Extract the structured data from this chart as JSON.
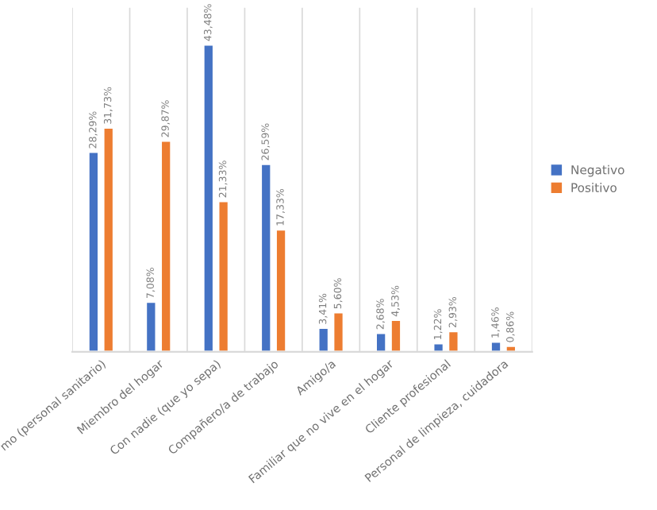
{
  "chart_data": {
    "type": "bar",
    "categories": [
      "mo (personal sanitario)",
      "Miembro del hogar",
      "Con nadie (que yo sepa)",
      "Compañero/a de trabajo",
      "Amigo/a",
      "Familiar que no vive en el hogar",
      "Cliente profesional",
      "Personal de limpieza, cuidadora"
    ],
    "series": [
      {
        "name": "Negativo",
        "color": "#4472c4",
        "values": [
          28.29,
          7.08,
          43.48,
          26.59,
          3.41,
          2.68,
          1.22,
          1.46
        ],
        "value_labels": [
          "28,29%",
          "7,08%",
          "43,48%",
          "26,59%",
          "3,41%",
          "2,68%",
          "1,22%",
          "1,46%"
        ]
      },
      {
        "name": "Positivo",
        "color": "#ed7d31",
        "values": [
          31.73,
          29.87,
          21.33,
          17.33,
          5.6,
          4.53,
          2.93,
          0.86
        ],
        "value_labels": [
          "31,73%",
          "29,87%",
          "21,33%",
          "17,33%",
          "5,60%",
          "4,53%",
          "2,93%",
          "0,86%"
        ]
      }
    ],
    "tick_labels": "x",
    "grid": "x",
    "legend": "right"
  }
}
